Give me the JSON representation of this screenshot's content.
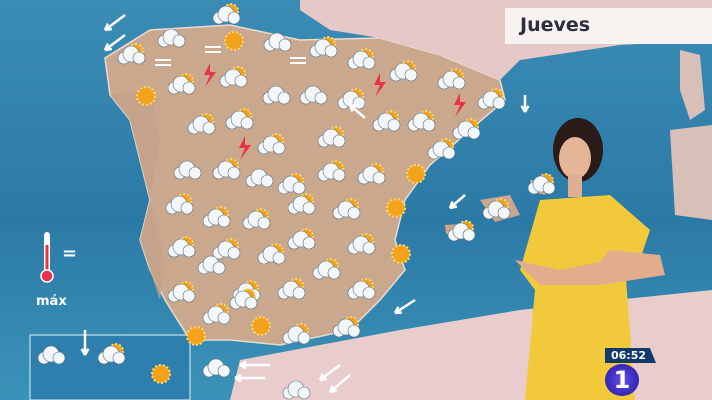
{
  "broadcast": {
    "day_label": "Jueves",
    "clock": "06:52",
    "channel_logo": "1"
  },
  "legend": {
    "icon": "thermometer-icon",
    "label": "máx",
    "symbol": "="
  },
  "colors": {
    "sea": "#2f7fa8",
    "land": "#c9a88e",
    "cloud": "#f4f7fa",
    "sun": "#f3a21c",
    "lightning": "#e8324a",
    "dress": "#f2c93a"
  },
  "map_icons": {
    "types": [
      "sun",
      "cloud-sun",
      "cloud",
      "cloud-rain-sun",
      "storm",
      "fog",
      "wind-arrow"
    ]
  }
}
